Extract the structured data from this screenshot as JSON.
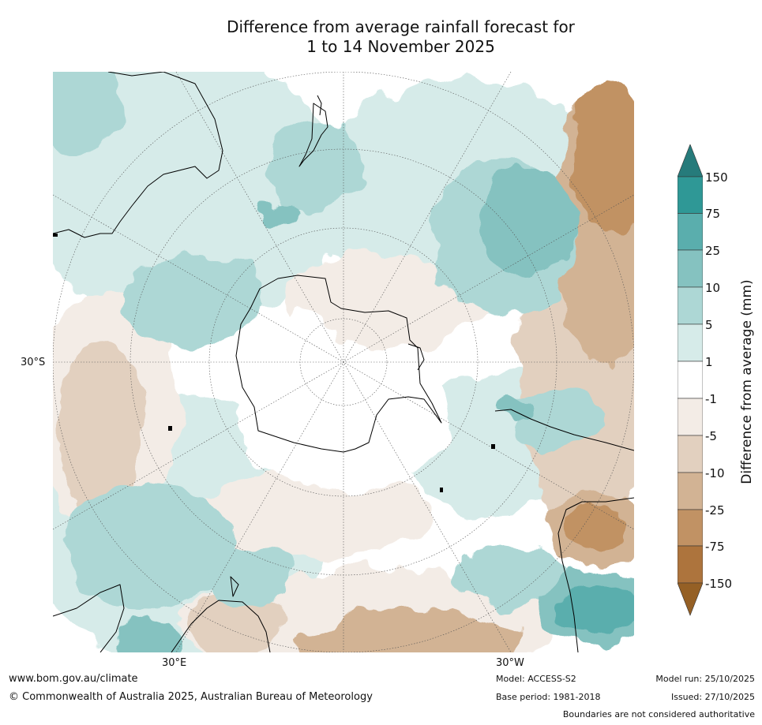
{
  "title": {
    "line1": "Difference from average rainfall forecast for",
    "line2": "1 to 14 November 2025"
  },
  "map": {
    "projection": "south-polar-stereographic",
    "lat_label": "30°S",
    "lon_labels": {
      "east": "30°E",
      "west": "30°W"
    }
  },
  "colorbar": {
    "title": "Difference from average (mm)",
    "ticks": [
      "150",
      "75",
      "25",
      "10",
      "5",
      "1",
      "-1",
      "-5",
      "-10",
      "-25",
      "-75",
      "-150"
    ],
    "colors": {
      "over": "#267b7b",
      "150_75": "#2f9896",
      "75_25": "#5aaead",
      "25_10": "#85c2c0",
      "10_5": "#add7d5",
      "5_1": "#d6ebe9",
      "1_-1": "#ffffff",
      "-1_-5": "#f3ece6",
      "-5_-10": "#e2d0bf",
      "-10_-25": "#d2b394",
      "-25_-75": "#c19264",
      "-75_-150": "#ad743d",
      "under": "#956025"
    }
  },
  "footer": {
    "website": "www.bom.gov.au/climate",
    "copyright": "© Commonwealth of Australia 2025, Australian Bureau of Meteorology",
    "model": "Model: ACCESS-S2",
    "base_period": "Base period: 1981-2018",
    "model_run": "Model run: 25/10/2025",
    "issued": "Issued: 27/10/2025",
    "disclaimer": "Boundaries are not considered authoritative"
  }
}
